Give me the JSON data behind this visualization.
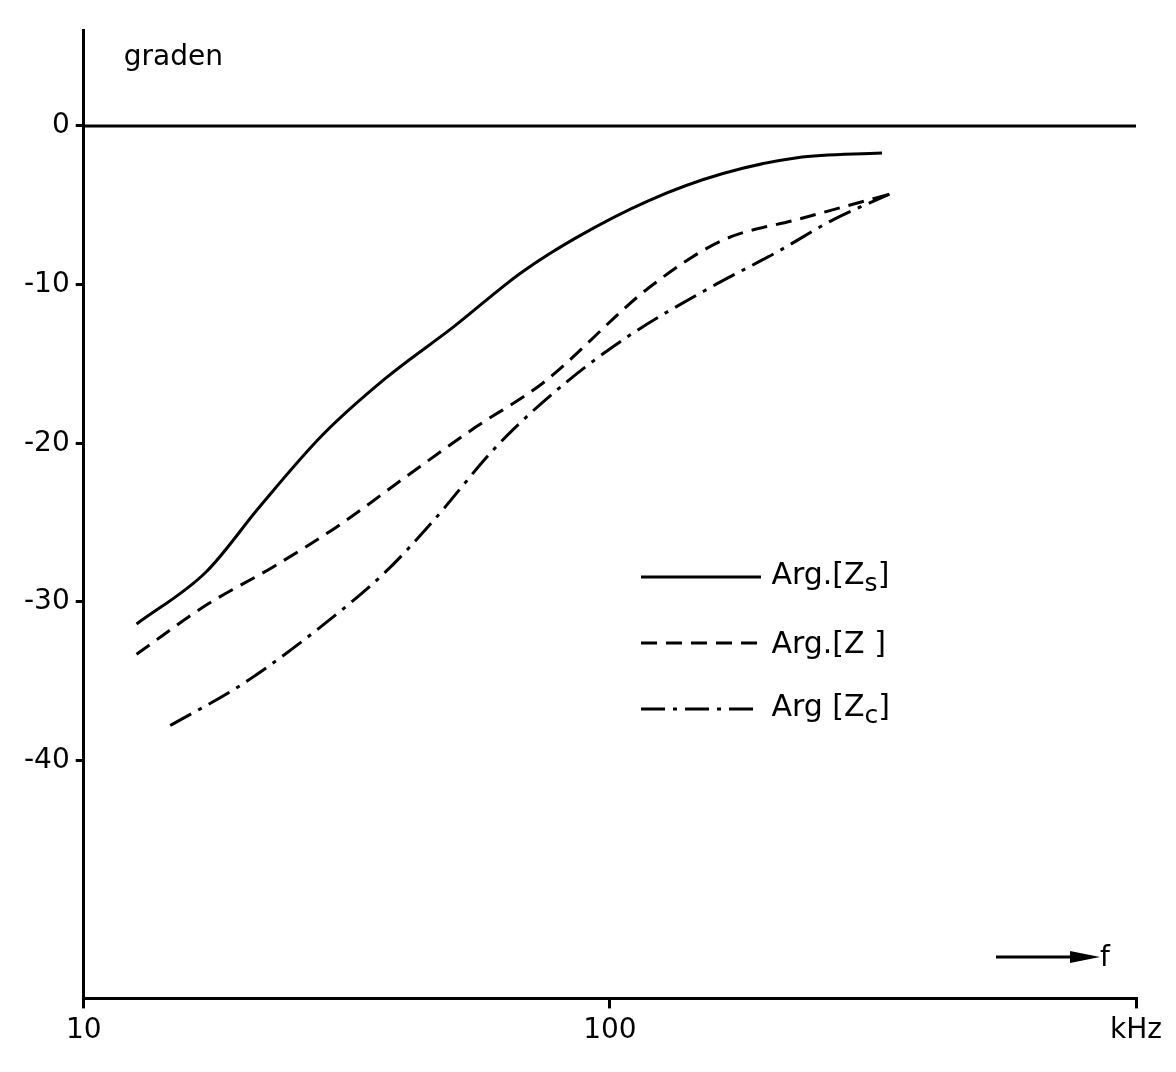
{
  "chart_data": {
    "type": "line",
    "xlabel": "f",
    "ylabel": "graden",
    "log": "x",
    "grid": false,
    "legend": "right",
    "marker": "none",
    "xlim": [
      10,
      1000
    ],
    "xticks": [
      10,
      100,
      {
        "value": 1000,
        "label": "kHz"
      }
    ],
    "ylim": [
      -55,
      6
    ],
    "yticks": [
      0,
      -10,
      -20,
      -30,
      -40
    ],
    "ref_lines": [
      {
        "axis": "y",
        "value": 0,
        "color": "#000000",
        "line_style": "solid"
      }
    ],
    "series": [
      {
        "name": "Arg.[Z$_{s}$]",
        "color": "#000000",
        "line_style": "solid",
        "x": [
          12.6,
          17.1,
          21.6,
          28.4,
          37.5,
          50.3,
          67.5,
          85.7,
          118.6,
          164,
          227,
          329
        ],
        "values": [
          -31.4,
          -28.1,
          -24,
          -19.5,
          -15.9,
          -12.7,
          -9.3,
          -7.1,
          -4.7,
          -3.0,
          -2.0,
          -1.7
        ]
      },
      {
        "name": "Arg.[Z ]",
        "color": "#000000",
        "line_style": "dashed",
        "x": [
          12.6,
          17.1,
          22.9,
          30.8,
          41.4,
          55.5,
          74.6,
          118.6,
          164,
          227,
          340
        ],
        "values": [
          -33.3,
          -30.2,
          -27.8,
          -25.1,
          -22.0,
          -19.0,
          -16.2,
          -10.2,
          -7.2,
          -5.9,
          -4.3
        ]
      },
      {
        "name": "Arg [Z$_{c}$]",
        "color": "#000000",
        "line_style": "dashdot",
        "x": [
          14.6,
          20,
          27.9,
          37.5,
          45.6,
          61.3,
          82.3,
          109,
          151,
          209,
          266,
          340
        ],
        "values": [
          -37.8,
          -35.2,
          -31.7,
          -28.1,
          -25.1,
          -20.1,
          -16.2,
          -13.2,
          -10.4,
          -7.9,
          -5.9,
          -4.3
        ]
      }
    ]
  }
}
